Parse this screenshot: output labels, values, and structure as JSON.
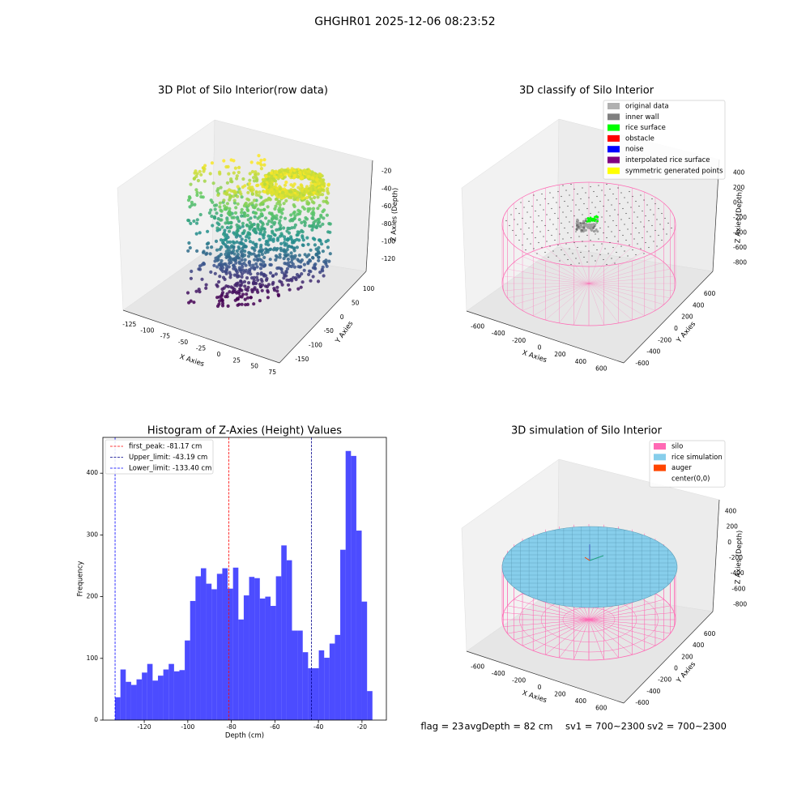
{
  "title": "GHGHR01 2025-12-06 08:23:52",
  "chart_data": [
    {
      "type": "scatter3d",
      "title": "3D Plot of Silo Interior(row data)",
      "xlabel": "X Axies",
      "ylabel": "Y Axies",
      "zlabel": "Z Axies (Depth)",
      "xlim": [
        -135,
        85
      ],
      "xticks": [
        -125,
        -100,
        -75,
        -50,
        -25,
        0,
        25,
        50,
        75
      ],
      "ylim": [
        -165,
        115
      ],
      "yticks": [
        -150,
        -100,
        -50,
        0,
        50,
        100
      ],
      "zlim": [
        -130,
        -12
      ],
      "zticks": [
        -120,
        -100,
        -80,
        -60,
        -40,
        -20
      ]
    },
    {
      "type": "scatter3d",
      "title": "3D classify of Silo Interior",
      "xlabel": "X Axies",
      "ylabel": "Y Axies",
      "zlabel": "Z Axies (Depth)",
      "xlim": [
        -700,
        700
      ],
      "xticks": [
        -600,
        -400,
        -200,
        0,
        200,
        400,
        600
      ],
      "ylim": [
        -700,
        700
      ],
      "yticks": [
        -600,
        -400,
        -200,
        0,
        200,
        400,
        600
      ],
      "zlim": [
        -900,
        500
      ],
      "zticks": [
        -800,
        -600,
        -400,
        -200,
        0,
        200,
        400
      ],
      "legend_loc": "upper right",
      "legend": [
        {
          "name": "original data",
          "color": "#b0b0b0"
        },
        {
          "name": "inner wall",
          "color": "#808080"
        },
        {
          "name": "rice surface",
          "color": "#00ff00"
        },
        {
          "name": "obstacle",
          "color": "#ff0000"
        },
        {
          "name": "noise",
          "color": "#0000ff"
        },
        {
          "name": "interpolated rice surface",
          "color": "#800080"
        },
        {
          "name": "symmetric generated points",
          "color": "#ffff00"
        }
      ]
    },
    {
      "type": "histogram",
      "title": "Histogram of Z-Axies (Height) Values",
      "xlabel": "Depth (cm)",
      "ylabel": "Frequency",
      "color": "#0000ff",
      "bins": [
        -133.4,
        -130.94,
        -128.48,
        -126.01,
        -123.55,
        -121.09,
        -118.63,
        -116.16,
        -113.7,
        -111.24,
        -108.78,
        -106.31,
        -103.85,
        -101.39,
        -98.93,
        -96.46,
        -94.0,
        -91.54,
        -89.08,
        -86.61,
        -84.15,
        -81.69,
        -79.23,
        -76.76,
        -74.3,
        -71.84,
        -69.38,
        -66.91,
        -64.45,
        -61.99,
        -59.53,
        -57.06,
        -54.6,
        -52.14,
        -49.68,
        -47.21,
        -44.75,
        -42.29,
        -39.83,
        -37.36,
        -34.9,
        -32.44,
        -29.98,
        -27.51,
        -25.05,
        -22.59,
        -20.13,
        -17.66,
        -15.2
      ],
      "values": [
        37,
        82,
        62,
        57,
        66,
        77,
        91,
        64,
        72,
        82,
        91,
        79,
        81,
        129,
        193,
        233,
        246,
        221,
        212,
        237,
        246,
        213,
        247,
        163,
        202,
        232,
        230,
        197,
        200,
        185,
        233,
        283,
        259,
        145,
        145,
        110,
        84,
        84,
        113,
        101,
        124,
        138,
        276,
        436,
        428,
        307,
        192,
        47
      ],
      "xlim": [
        -139,
        -8.8
      ],
      "xticks": [
        -120,
        -100,
        -80,
        -60,
        -40,
        -20
      ],
      "ylim": [
        0,
        458
      ],
      "yticks": [
        0,
        100,
        200,
        300,
        400
      ],
      "legend_loc": "upper left",
      "lines": [
        {
          "name": "first_peak: -81.17 cm",
          "value": -81.17,
          "color": "#ff0000"
        },
        {
          "name": "Upper_limit: -43.19 cm",
          "value": -43.19,
          "color": "#00008b"
        },
        {
          "name": "Lower_limit: -133.40 cm",
          "value": -133.4,
          "color": "#0000ff"
        }
      ]
    },
    {
      "type": "surface3d",
      "title": "3D simulation of Silo Interior",
      "xlabel": "X Axies",
      "ylabel": "Y Axies",
      "zlabel": "Z Axies (Depth)",
      "xlim": [
        -700,
        700
      ],
      "xticks": [
        -600,
        -400,
        -200,
        0,
        200,
        400,
        600
      ],
      "ylim": [
        -700,
        700
      ],
      "yticks": [
        -600,
        -400,
        -200,
        0,
        200,
        400,
        600
      ],
      "zlim": [
        -900,
        500
      ],
      "zticks": [
        -800,
        -600,
        -400,
        -200,
        0,
        200,
        400
      ],
      "legend_loc": "upper right",
      "legend": [
        {
          "name": "silo",
          "color": "#ff69b4"
        },
        {
          "name": "rice simulation",
          "color": "#87ceeb"
        },
        {
          "name": "auger",
          "color": "#ff4500"
        },
        {
          "name": "center(0,0)",
          "color": "#ffffff"
        }
      ]
    }
  ],
  "footer": [
    "flag = 23",
    "avgDepth = 82 cm",
    "sv1 = 700~2300",
    "sv2 = 700~2300"
  ]
}
